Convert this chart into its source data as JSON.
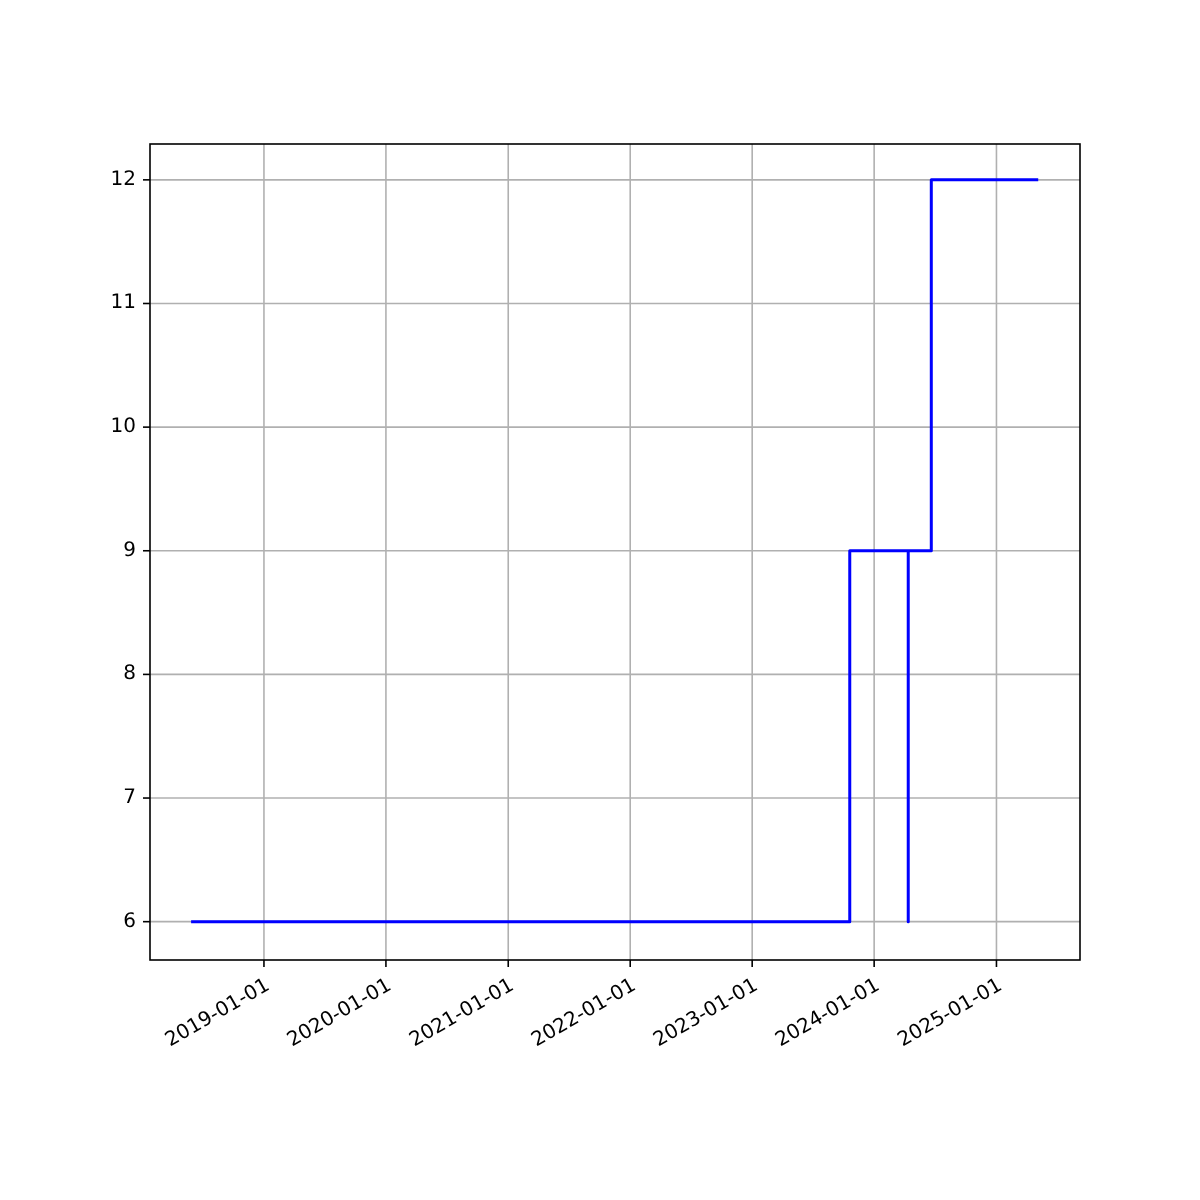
{
  "chart_data": {
    "type": "step",
    "x": [
      "2018-05-28",
      "2023-10-20",
      "2024-04-12",
      "2024-04-12",
      "2024-06-20",
      "2025-05-06"
    ],
    "series": [
      {
        "color": "#0000ff",
        "values": [
          6,
          9,
          6,
          9,
          12,
          12
        ]
      }
    ],
    "xlim": [
      "2018-01-25",
      "2025-09-08"
    ],
    "ylim": [
      5.69,
      12.29
    ],
    "xticks": [
      "2019-01-01",
      "2020-01-01",
      "2021-01-01",
      "2022-01-01",
      "2023-01-01",
      "2024-01-01",
      "2025-01-01"
    ],
    "yticks": [
      6,
      7,
      8,
      9,
      10,
      11,
      12
    ],
    "grid": true,
    "marker": "none",
    "line_style": "solid"
  }
}
